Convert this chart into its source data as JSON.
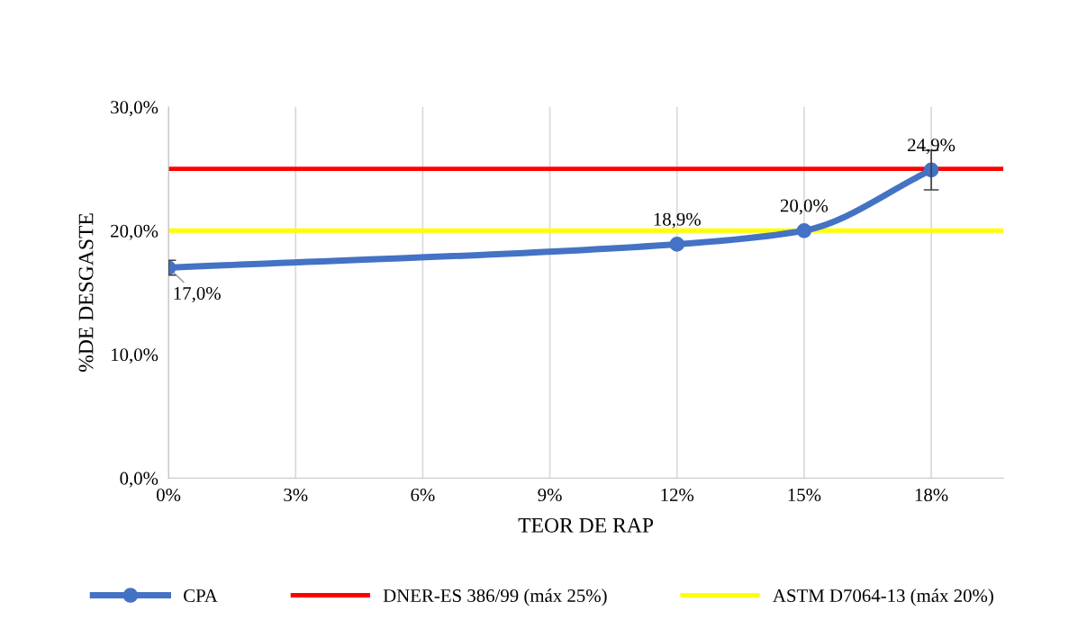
{
  "chart_data": {
    "type": "line",
    "xlabel": "TEOR DE RAP",
    "ylabel": "%DE DESGASTE",
    "x": [
      0,
      12,
      15,
      18
    ],
    "series": [
      {
        "name": "CPA",
        "color": "#4472c4",
        "values": [
          17.0,
          18.9,
          20.0,
          24.9
        ],
        "errors": [
          0.6,
          null,
          null,
          1.6
        ],
        "value_labels": [
          "17,0%",
          "18,9%",
          "20,0%",
          "24,9%"
        ]
      }
    ],
    "ref_lines": [
      {
        "axis": "y",
        "value": 25,
        "label": "DNER-ES 386/99 (máx 25%)",
        "color": "#ff0000"
      },
      {
        "axis": "y",
        "value": 20,
        "label": "ASTM D7064-13 (máx 20%)",
        "color": "#ffff00"
      }
    ],
    "xlim": [
      0,
      19.7
    ],
    "xticks": [
      {
        "value": 0,
        "label": "0%"
      },
      {
        "value": 3,
        "label": "3%"
      },
      {
        "value": 6,
        "label": "6%"
      },
      {
        "value": 9,
        "label": "9%"
      },
      {
        "value": 12,
        "label": "12%"
      },
      {
        "value": 15,
        "label": "15%"
      },
      {
        "value": 18,
        "label": "18%"
      }
    ],
    "ylim": [
      0,
      30
    ],
    "yticks": [
      {
        "value": 0,
        "label": "0,0%"
      },
      {
        "value": 10,
        "label": "10,0%"
      },
      {
        "value": 20,
        "label": "20,0%"
      },
      {
        "value": 30,
        "label": "30,0%"
      }
    ],
    "grid": "x",
    "legend": "bottom",
    "marker": "circle",
    "line_style": "solid"
  }
}
